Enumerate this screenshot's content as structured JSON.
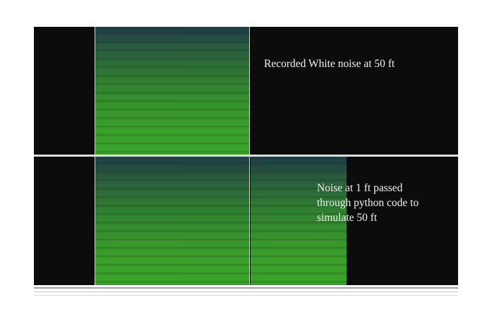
{
  "tracks": [
    {
      "label": "Recorded White noise at 50 ft"
    },
    {
      "label_lines": [
        "Noise at 1 ft passed",
        "through python code to",
        "simulate 50 ft"
      ]
    }
  ],
  "colors": {
    "background": "#0c0c0c",
    "spectrogram_low": "#3aa42b",
    "spectrogram_high": "#1f3c46",
    "label_text": "#f2f2f2"
  }
}
